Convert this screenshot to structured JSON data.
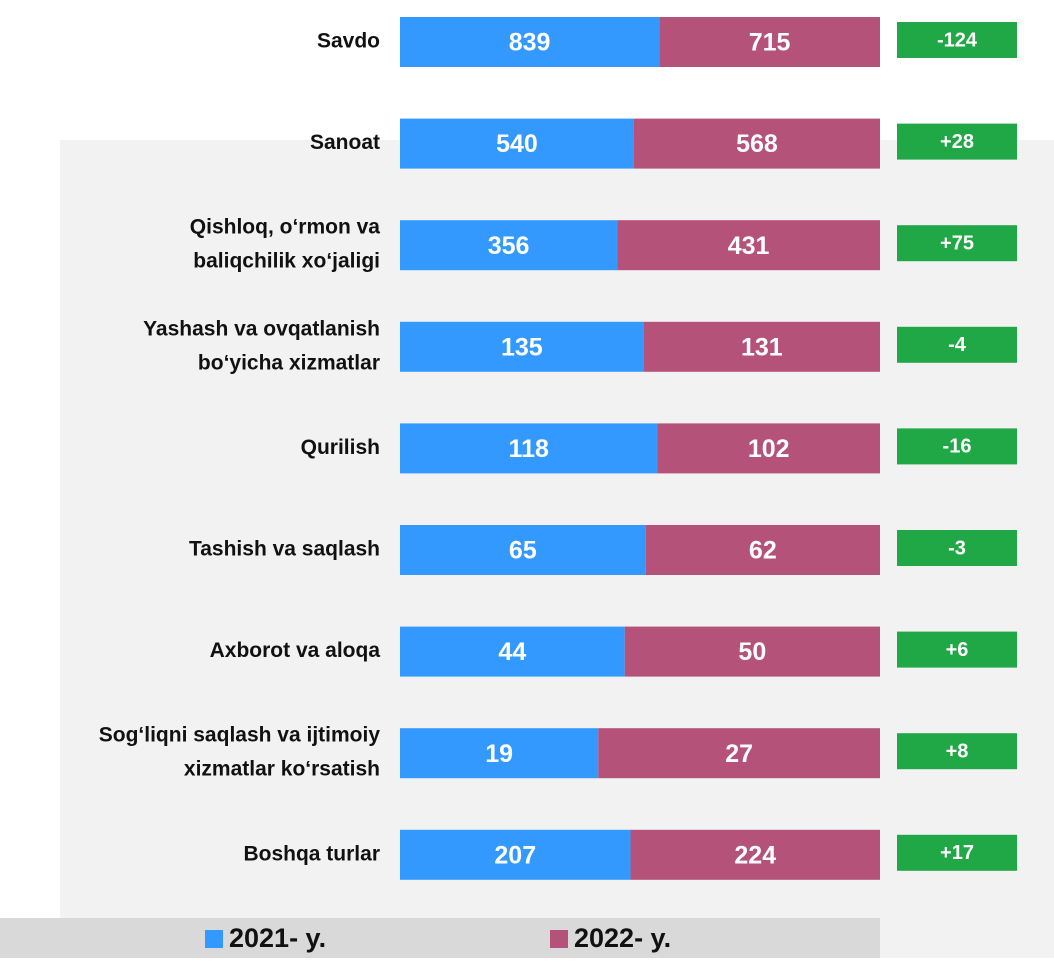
{
  "chart_data": {
    "type": "bar",
    "stacked": true,
    "orientation": "horizontal",
    "normalized": true,
    "categories": [
      [
        "Savdo"
      ],
      [
        "Sanoat"
      ],
      [
        "Qishloq, o‘rmon va",
        "baliqchilik  xo‘jaligi"
      ],
      [
        "Yashash va ovqatlanish",
        "bo‘yicha xizmatlar"
      ],
      [
        "Qurilish"
      ],
      [
        "Tashish va saqlash"
      ],
      [
        "Axborot va aloqa"
      ],
      [
        "Sog‘liqni saqlash va ijtimoiy",
        "xizmatlar ko‘rsatish"
      ],
      [
        "Boshqa turlar"
      ]
    ],
    "series": [
      {
        "name": "2021- y.",
        "color": "#3399ff",
        "values": [
          839,
          540,
          356,
          135,
          118,
          65,
          44,
          19,
          207
        ]
      },
      {
        "name": "2022- y.",
        "color": "#b4527a",
        "values": [
          715,
          568,
          431,
          131,
          102,
          62,
          50,
          27,
          224
        ]
      }
    ],
    "changes": {
      "color": "#21a846",
      "values": [
        -124,
        28,
        75,
        -4,
        -16,
        -3,
        6,
        8,
        17
      ],
      "value_labels": [
        "-124",
        "+28",
        "+75",
        "-4",
        "-16",
        "-3",
        "+6",
        "+8",
        "+17"
      ]
    },
    "legend": "bottom"
  }
}
